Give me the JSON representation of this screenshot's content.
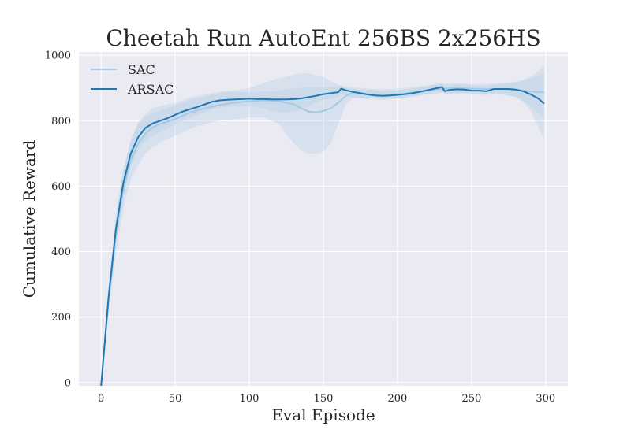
{
  "chart_data": {
    "type": "line",
    "title": "Cheetah Run AutoEnt 256BS 2x256HS",
    "xlabel": "Eval Episode",
    "ylabel": "Cumulative Reward",
    "xlim": [
      -15,
      315
    ],
    "ylim": [
      -10,
      1010
    ],
    "xticks": [
      0,
      50,
      100,
      150,
      200,
      250,
      300
    ],
    "yticks": [
      0,
      200,
      400,
      600,
      800,
      1000
    ],
    "grid": true,
    "legend_position": "top-left",
    "colors": {
      "background": "#eaeaf2",
      "grid": "#ffffff",
      "band": "#b4cde4",
      "SAC": "#a6cae3",
      "ARSAC": "#1f77b4"
    },
    "series": [
      {
        "name": "SAC",
        "color": "#a6cae3",
        "x": [
          0,
          5,
          10,
          15,
          20,
          25,
          30,
          35,
          40,
          50,
          60,
          70,
          80,
          90,
          100,
          110,
          120,
          130,
          135,
          140,
          145,
          150,
          155,
          160,
          165,
          170,
          180,
          190,
          200,
          210,
          220,
          230,
          240,
          250,
          260,
          270,
          280,
          290,
          299
        ],
        "y": [
          -10,
          250,
          450,
          590,
          680,
          730,
          760,
          780,
          790,
          805,
          825,
          838,
          848,
          855,
          860,
          862,
          860,
          850,
          838,
          828,
          826,
          830,
          838,
          855,
          875,
          885,
          880,
          877,
          880,
          886,
          892,
          898,
          900,
          898,
          897,
          897,
          893,
          889,
          886
        ],
        "lower": [
          -10,
          210,
          400,
          530,
          620,
          665,
          700,
          720,
          735,
          755,
          775,
          790,
          800,
          805,
          810,
          810,
          790,
          730,
          710,
          700,
          700,
          705,
          730,
          790,
          850,
          870,
          870,
          868,
          870,
          875,
          880,
          885,
          885,
          884,
          882,
          880,
          872,
          845,
          805
        ],
        "upper": [
          -10,
          290,
          500,
          650,
          740,
          795,
          820,
          840,
          845,
          855,
          870,
          880,
          888,
          893,
          900,
          915,
          930,
          940,
          945,
          945,
          940,
          935,
          920,
          910,
          900,
          897,
          893,
          890,
          892,
          898,
          905,
          912,
          915,
          912,
          912,
          915,
          918,
          930,
          945
        ]
      },
      {
        "name": "ARSAC",
        "color": "#1f77b4",
        "x": [
          0,
          5,
          10,
          15,
          20,
          25,
          30,
          35,
          40,
          45,
          50,
          55,
          60,
          65,
          70,
          75,
          80,
          85,
          90,
          95,
          100,
          105,
          110,
          115,
          120,
          125,
          130,
          135,
          140,
          145,
          150,
          155,
          160,
          162,
          165,
          170,
          175,
          180,
          185,
          190,
          195,
          200,
          205,
          210,
          215,
          220,
          225,
          230,
          232,
          235,
          240,
          245,
          250,
          255,
          260,
          265,
          270,
          275,
          280,
          285,
          290,
          295,
          299
        ],
        "y": [
          -10,
          260,
          470,
          610,
          700,
          750,
          778,
          792,
          800,
          808,
          818,
          828,
          835,
          842,
          850,
          858,
          862,
          864,
          865,
          866,
          867,
          866,
          866,
          865,
          865,
          865,
          866,
          868,
          872,
          876,
          881,
          884,
          887,
          898,
          893,
          888,
          884,
          880,
          877,
          876,
          877,
          879,
          881,
          884,
          888,
          893,
          898,
          903,
          890,
          894,
          896,
          895,
          892,
          892,
          890,
          897,
          897,
          897,
          895,
          890,
          880,
          868,
          852
        ],
        "lower": [
          -10,
          230,
          430,
          570,
          660,
          715,
          740,
          755,
          765,
          775,
          790,
          800,
          810,
          818,
          826,
          835,
          840,
          843,
          843,
          845,
          845,
          842,
          838,
          830,
          825,
          825,
          828,
          835,
          845,
          855,
          862,
          868,
          872,
          880,
          875,
          870,
          868,
          866,
          865,
          864,
          865,
          868,
          870,
          873,
          877,
          882,
          886,
          888,
          880,
          882,
          883,
          882,
          880,
          880,
          878,
          882,
          880,
          878,
          872,
          858,
          830,
          780,
          740
        ],
        "upper": [
          -10,
          290,
          510,
          650,
          740,
          790,
          812,
          822,
          832,
          838,
          848,
          856,
          862,
          868,
          875,
          880,
          885,
          887,
          887,
          888,
          888,
          888,
          889,
          890,
          892,
          895,
          898,
          900,
          902,
          903,
          903,
          903,
          903,
          910,
          905,
          902,
          900,
          898,
          897,
          896,
          897,
          898,
          900,
          902,
          905,
          908,
          912,
          917,
          905,
          907,
          910,
          910,
          908,
          906,
          905,
          910,
          912,
          915,
          918,
          925,
          935,
          950,
          968
        ]
      }
    ]
  }
}
